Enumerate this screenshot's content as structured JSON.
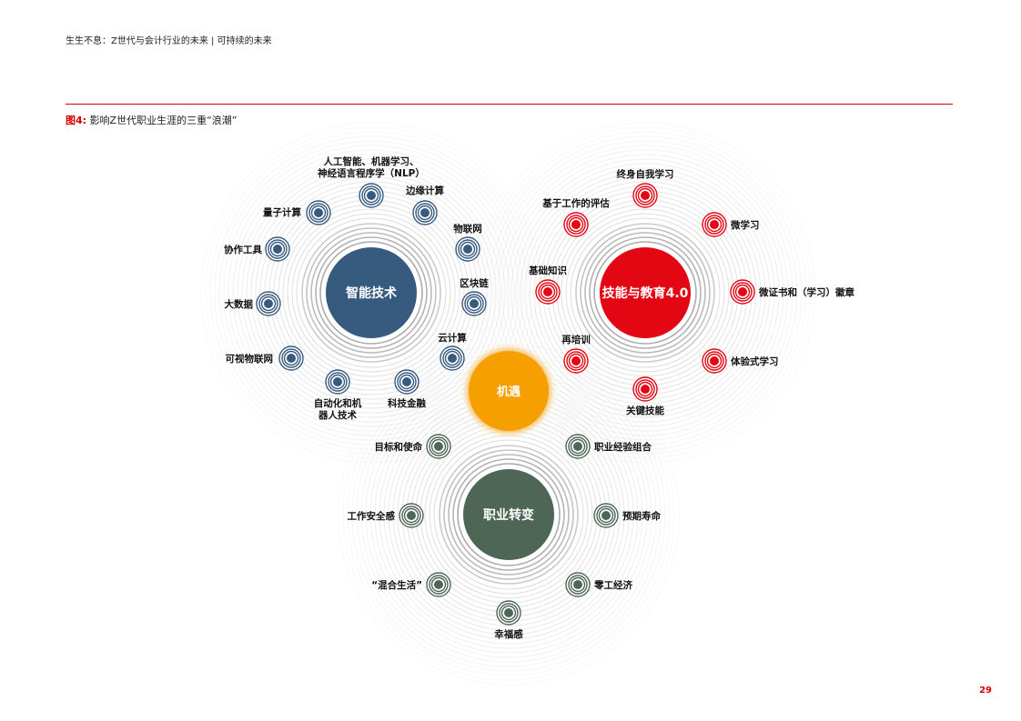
{
  "header": {
    "text": "生生不息：Z世代与会计行业的未来 | 可持续的未来"
  },
  "figure": {
    "label": "图4:",
    "title": "影响Z世代职业生涯的三重“浪潮”"
  },
  "page_number": "29",
  "colors": {
    "tech": "#375a7f",
    "skills": "#e30613",
    "career": "#4d6656",
    "opportunity": "#f5a000",
    "ring": "#d2d2d2",
    "accent": "#d50000"
  },
  "hubs": {
    "tech": "智能技术",
    "skills": "技能与教育4.0",
    "career": "职业转变",
    "opportunity": "机遇"
  },
  "tech_items": [
    {
      "label": "人工智能、机器学习、",
      "label2": "神经语言程序学（NLP）"
    },
    {
      "label": "边缘计算"
    },
    {
      "label": "物联网"
    },
    {
      "label": "区块链"
    },
    {
      "label": "云计算"
    },
    {
      "label": "科技金融"
    },
    {
      "label": "自动化和机",
      "label2": "器人技术"
    },
    {
      "label": "可视物联网"
    },
    {
      "label": "大数据"
    },
    {
      "label": "协作工具"
    },
    {
      "label": "量子计算"
    }
  ],
  "skills_items": [
    {
      "label": "终身自我学习"
    },
    {
      "label": "微学习"
    },
    {
      "label": "微证书和（学习）徽章"
    },
    {
      "label": "体验式学习"
    },
    {
      "label": "关键技能"
    },
    {
      "label": "再培训"
    },
    {
      "label": "基础知识"
    },
    {
      "label": "基于工作的评估"
    }
  ],
  "career_items": [
    {
      "label": "职业经验组合"
    },
    {
      "label": "预期寿命"
    },
    {
      "label": "零工经济"
    },
    {
      "label": "幸福感"
    },
    {
      "label": "“混合生活”"
    },
    {
      "label": "工作安全感"
    },
    {
      "label": "目标和使命"
    }
  ]
}
